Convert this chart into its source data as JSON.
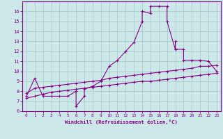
{
  "title": "",
  "xlabel": "Windchill (Refroidissement éolien,°C)",
  "ylabel": "",
  "background_color": "#cce8e8",
  "grid_color": "#aacccc",
  "line_color": "#880088",
  "spine_color": "#880088",
  "xlim": [
    -0.5,
    23.5
  ],
  "ylim": [
    6,
    17
  ],
  "xticks": [
    0,
    1,
    2,
    3,
    4,
    5,
    6,
    7,
    8,
    9,
    10,
    11,
    12,
    13,
    14,
    15,
    16,
    17,
    18,
    19,
    20,
    21,
    22,
    23
  ],
  "yticks": [
    6,
    7,
    8,
    9,
    10,
    11,
    12,
    13,
    14,
    15,
    16
  ],
  "line1_x": [
    0,
    1,
    2,
    3,
    4,
    5,
    6,
    6,
    7,
    7,
    8,
    9,
    10,
    11,
    12,
    13,
    14,
    14,
    15,
    15,
    16,
    17,
    17,
    18,
    18,
    18,
    19,
    19,
    20,
    21,
    22,
    23
  ],
  "line1_y": [
    7.5,
    9.3,
    7.5,
    7.5,
    7.5,
    7.5,
    8.0,
    6.5,
    7.5,
    8.2,
    8.5,
    9.0,
    10.5,
    11.1,
    12.0,
    12.9,
    15.0,
    16.0,
    15.8,
    16.5,
    16.5,
    16.5,
    15.0,
    12.2,
    13.0,
    12.2,
    12.2,
    11.1,
    11.1,
    11.1,
    11.0,
    10.0
  ],
  "line2_x": [
    0,
    1,
    2,
    3,
    4,
    5,
    6,
    7,
    8,
    9,
    10,
    11,
    12,
    13,
    14,
    15,
    16,
    17,
    18,
    19,
    20,
    21,
    22,
    23
  ],
  "line2_y": [
    7.8,
    8.3,
    8.4,
    8.5,
    8.6,
    8.7,
    8.8,
    8.9,
    9.0,
    9.1,
    9.3,
    9.4,
    9.5,
    9.6,
    9.7,
    9.8,
    9.9,
    10.0,
    10.1,
    10.2,
    10.3,
    10.5,
    10.5,
    10.6
  ],
  "line3_x": [
    0,
    1,
    2,
    3,
    4,
    5,
    6,
    7,
    8,
    9,
    10,
    11,
    12,
    13,
    14,
    15,
    16,
    17,
    18,
    19,
    20,
    21,
    22,
    23
  ],
  "line3_y": [
    7.3,
    7.5,
    7.7,
    7.9,
    8.0,
    8.1,
    8.2,
    8.3,
    8.4,
    8.5,
    8.6,
    8.7,
    8.8,
    8.9,
    9.0,
    9.0,
    9.1,
    9.2,
    9.3,
    9.4,
    9.5,
    9.6,
    9.7,
    9.8
  ]
}
